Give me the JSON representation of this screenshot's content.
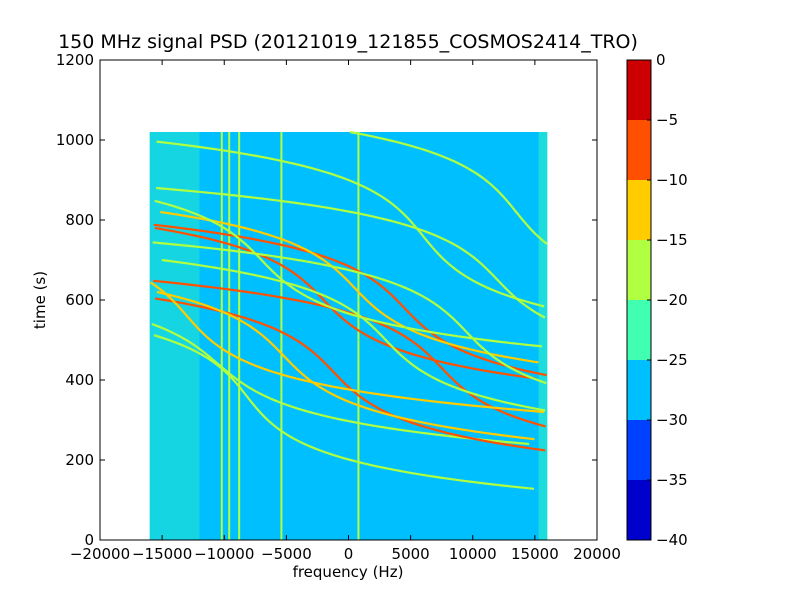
{
  "chart_data": {
    "type": "heatmap",
    "title": "150 MHz signal PSD (20121019_121855_COSMOS2414_TRO)",
    "xlabel": "frequency (Hz)",
    "ylabel": "time (s)",
    "xlim": [
      -20000,
      20000
    ],
    "ylim": [
      0,
      1200
    ],
    "x_ticks": [
      -20000,
      -15000,
      -10000,
      -5000,
      0,
      5000,
      10000,
      15000,
      20000
    ],
    "x_tick_labels": [
      "−20000",
      "−15000",
      "−10000",
      "−5000",
      "0",
      "5000",
      "10000",
      "15000",
      "20000"
    ],
    "y_ticks": [
      0,
      200,
      400,
      600,
      800,
      1000,
      1200
    ],
    "y_tick_labels": [
      "0",
      "200",
      "400",
      "600",
      "800",
      "1000",
      "1200"
    ],
    "data_extent": {
      "x": [
        -16000,
        16000
      ],
      "y": [
        0,
        1020
      ]
    },
    "background_level": -28,
    "colorbar": {
      "levels": [
        -40,
        -35,
        -30,
        -25,
        -20,
        -15,
        -10,
        -5,
        0
      ],
      "tick_labels": [
        "−40",
        "−35",
        "−30",
        "−25",
        "−20",
        "−15",
        "−10",
        "−5",
        "0"
      ],
      "colors": [
        "#0000cc",
        "#0040ff",
        "#00bfff",
        "#40ffb0",
        "#b0ff40",
        "#ffcc00",
        "#ff5000",
        "#cc0000"
      ]
    },
    "traces": [
      {
        "t0": 440,
        "f0": -10500,
        "a": 2500,
        "b": 0.015,
        "level": -18
      },
      {
        "t0": 420,
        "f0": -1200,
        "a": 2200,
        "b": 0.014,
        "level": -8
      },
      {
        "t0": 430,
        "f0": 7500,
        "a": 2200,
        "b": 0.014,
        "level": -8
      },
      {
        "t0": 600,
        "f0": -2000,
        "a": 2200,
        "b": 0.014,
        "level": -8
      },
      {
        "t0": 580,
        "f0": 4500,
        "a": 2200,
        "b": 0.014,
        "level": -10
      },
      {
        "t0": 630,
        "f0": 500,
        "a": 2200,
        "b": 0.014,
        "level": -15
      },
      {
        "t0": 650,
        "f0": 12000,
        "a": 2200,
        "b": 0.014,
        "level": -18
      },
      {
        "t0": 700,
        "f0": -7000,
        "a": 2200,
        "b": 0.014,
        "level": -18
      },
      {
        "t0": 560,
        "f0": -13000,
        "a": 2000,
        "b": 0.014,
        "level": -15
      },
      {
        "t0": 500,
        "f0": 3000,
        "a": 2200,
        "b": 0.014,
        "level": -18
      },
      {
        "t0": 520,
        "f0": 9500,
        "a": 2200,
        "b": 0.014,
        "level": -18
      },
      {
        "t0": 460,
        "f0": -5200,
        "a": 2200,
        "b": 0.014,
        "level": -15
      },
      {
        "t0": 760,
        "f0": 6000,
        "a": 2000,
        "b": 0.013,
        "level": -18
      },
      {
        "t0": 820,
        "f0": 13500,
        "a": 2000,
        "b": 0.013,
        "level": -18
      },
      {
        "t0": 360,
        "f0": -8200,
        "a": 1800,
        "b": 0.014,
        "level": -18
      }
    ],
    "vertical_lines": [
      {
        "f": -10200,
        "level": -18
      },
      {
        "f": -9600,
        "level": -18
      },
      {
        "f": -8800,
        "level": -18
      },
      {
        "f": -5400,
        "level": -18
      },
      {
        "f": 800,
        "level": -18
      }
    ]
  }
}
